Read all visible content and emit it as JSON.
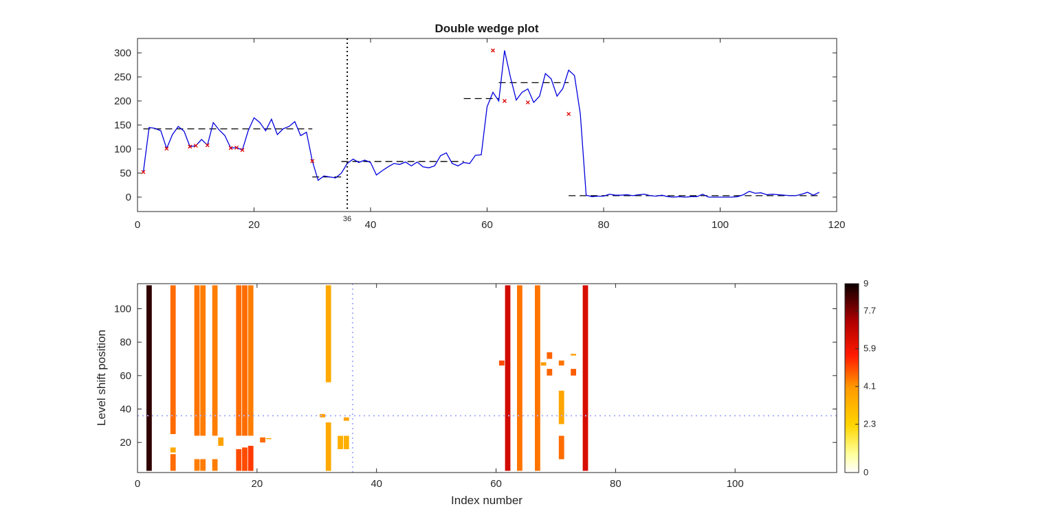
{
  "chart_data": [
    {
      "type": "line",
      "title": "Double wedge plot",
      "xlabel": "",
      "ylabel": "",
      "xlim": [
        0,
        120
      ],
      "ylim": [
        -30,
        330
      ],
      "xticks": [
        "0",
        "20",
        "40",
        "60",
        "80",
        "100",
        "120"
      ],
      "yticks": [
        "0",
        "50",
        "100",
        "150",
        "200",
        "250",
        "300"
      ],
      "vline": {
        "x": 36,
        "label": "36"
      },
      "colors": {
        "series": "#0000dd",
        "fit": "#000000",
        "marker": "#dd0000",
        "vline": "#000000"
      },
      "series": [
        {
          "x": [
            1,
            2,
            3,
            4,
            5,
            6,
            7,
            8,
            9,
            10,
            11,
            12,
            13,
            14,
            15,
            16,
            17,
            18,
            19,
            20,
            21,
            22,
            23,
            24,
            25,
            26,
            27,
            28,
            29,
            30,
            31,
            32,
            33,
            34,
            35,
            36,
            37,
            38,
            39,
            40,
            41,
            42,
            43,
            44,
            45,
            46,
            47,
            48,
            49,
            50,
            51,
            52,
            53,
            54,
            55,
            56,
            57,
            58,
            59,
            60,
            61,
            62,
            63,
            64,
            65,
            66,
            67,
            68,
            69,
            70,
            71,
            72,
            73,
            74,
            75,
            76,
            77,
            78,
            79,
            80,
            81,
            82,
            83,
            84,
            85,
            86,
            87,
            88,
            89,
            90,
            91,
            92,
            93,
            94,
            95,
            96,
            97,
            98,
            99,
            100,
            101,
            102,
            103,
            104,
            105,
            106,
            107,
            108,
            109,
            110,
            111,
            112,
            113,
            114,
            115,
            116,
            117
          ],
          "y": [
            52,
            145,
            143,
            138,
            101,
            130,
            147,
            137,
            105,
            107,
            120,
            108,
            155,
            140,
            128,
            102,
            103,
            98,
            138,
            165,
            155,
            138,
            162,
            130,
            142,
            147,
            157,
            128,
            135,
            75,
            35,
            44,
            42,
            40,
            50,
            70,
            79,
            72,
            77,
            72,
            46,
            55,
            63,
            70,
            68,
            73,
            65,
            73,
            63,
            61,
            65,
            86,
            92,
            70,
            65,
            72,
            70,
            87,
            88,
            188,
            218,
            200,
            305,
            250,
            202,
            218,
            225,
            197,
            210,
            257,
            246,
            210,
            226,
            264,
            253,
            173,
            4,
            1,
            2,
            2,
            6,
            4,
            4,
            5,
            3,
            5,
            6,
            3,
            2,
            4,
            1,
            0,
            1,
            0,
            1,
            1,
            6,
            0,
            0,
            0,
            0,
            0,
            1,
            5,
            12,
            8,
            9,
            5,
            6,
            5,
            4,
            3,
            3,
            6,
            10,
            4,
            10
          ]
        }
      ],
      "fit_segments": [
        {
          "x": [
            1,
            30
          ],
          "y": [
            142,
            142
          ]
        },
        {
          "x": [
            30,
            35
          ],
          "y": [
            42,
            42
          ]
        },
        {
          "x": [
            35,
            56
          ],
          "y": [
            74,
            74
          ]
        },
        {
          "x": [
            56,
            62
          ],
          "y": [
            205,
            205
          ]
        },
        {
          "x": [
            62,
            74
          ],
          "y": [
            238,
            238
          ]
        },
        {
          "x": [
            74,
            117
          ],
          "y": [
            3,
            3
          ]
        }
      ],
      "marked_points": [
        {
          "x": 1,
          "y": 52
        },
        {
          "x": 5,
          "y": 101
        },
        {
          "x": 9,
          "y": 105
        },
        {
          "x": 10,
          "y": 107
        },
        {
          "x": 12,
          "y": 108
        },
        {
          "x": 16,
          "y": 102
        },
        {
          "x": 17,
          "y": 103
        },
        {
          "x": 18,
          "y": 98
        },
        {
          "x": 30,
          "y": 75
        },
        {
          "x": 61,
          "y": 305
        },
        {
          "x": 63,
          "y": 200
        },
        {
          "x": 67,
          "y": 197
        },
        {
          "x": 74,
          "y": 173
        }
      ]
    },
    {
      "type": "heatmap",
      "title": "",
      "xlabel": "Index number",
      "ylabel": "Level shift position",
      "xlim": [
        0,
        117
      ],
      "ylim": [
        2,
        115
      ],
      "xticks": [
        "0",
        "20",
        "40",
        "60",
        "80",
        "100"
      ],
      "yticks": [
        "20",
        "40",
        "60",
        "80",
        "100"
      ],
      "guides": {
        "x": 36,
        "y": 36
      },
      "colorbar": {
        "range": [
          0,
          9
        ],
        "ticks": [
          "0",
          "2.3",
          "4.1",
          "5.9",
          "7.7",
          "9"
        ],
        "colormap": "hot"
      },
      "bars": [
        {
          "x": 1,
          "y0": 3,
          "y1": 114,
          "value": 8.6
        },
        {
          "x": 5,
          "y0": 25,
          "y1": 114,
          "value": 4.6
        },
        {
          "x": 5,
          "y0": 3,
          "y1": 13,
          "value": 4.6
        },
        {
          "x": 5,
          "y0": 14,
          "y1": 17,
          "value": 3.6
        },
        {
          "x": 9,
          "y0": 24,
          "y1": 114,
          "value": 4.5
        },
        {
          "x": 10,
          "y0": 24,
          "y1": 114,
          "value": 4.4
        },
        {
          "x": 9,
          "y0": 3,
          "y1": 10,
          "value": 4.4
        },
        {
          "x": 10,
          "y0": 3,
          "y1": 10,
          "value": 4.4
        },
        {
          "x": 12,
          "y0": 24,
          "y1": 114,
          "value": 4.4
        },
        {
          "x": 12,
          "y0": 3,
          "y1": 10,
          "value": 4.4
        },
        {
          "x": 13,
          "y0": 18,
          "y1": 23,
          "value": 3.8
        },
        {
          "x": 16,
          "y0": 24,
          "y1": 114,
          "value": 4.6
        },
        {
          "x": 16,
          "y0": 3,
          "y1": 16,
          "value": 5.0
        },
        {
          "x": 17,
          "y0": 24,
          "y1": 114,
          "value": 4.6
        },
        {
          "x": 17,
          "y0": 3,
          "y1": 17,
          "value": 5.0
        },
        {
          "x": 18,
          "y0": 24,
          "y1": 114,
          "value": 4.4
        },
        {
          "x": 18,
          "y0": 3,
          "y1": 18,
          "value": 5.2
        },
        {
          "x": 20,
          "y0": 20,
          "y1": 23,
          "value": 4.6
        },
        {
          "x": 21,
          "y0": 22,
          "y1": 22.6,
          "value": 3.8
        },
        {
          "x": 31,
          "y0": 56,
          "y1": 114,
          "value": 3.6
        },
        {
          "x": 31,
          "y0": 3,
          "y1": 32,
          "value": 3.6
        },
        {
          "x": 30,
          "y0": 35,
          "y1": 37,
          "value": 3.9
        },
        {
          "x": 33,
          "y0": 16,
          "y1": 24,
          "value": 3.4
        },
        {
          "x": 34,
          "y0": 16,
          "y1": 24,
          "value": 3.4
        },
        {
          "x": 34,
          "y0": 33,
          "y1": 35,
          "value": 3.8
        },
        {
          "x": 61,
          "y0": 3,
          "y1": 114,
          "value": 6.5
        },
        {
          "x": 63,
          "y0": 3,
          "y1": 114,
          "value": 4.5
        },
        {
          "x": 66,
          "y0": 3,
          "y1": 114,
          "value": 4.5
        },
        {
          "x": 70,
          "y0": 10,
          "y1": 24,
          "value": 4.6
        },
        {
          "x": 70,
          "y0": 31,
          "y1": 51,
          "value": 3.7
        },
        {
          "x": 74,
          "y0": 3,
          "y1": 114,
          "value": 6.4
        },
        {
          "x": 60,
          "y0": 66,
          "y1": 69,
          "value": 5.0
        },
        {
          "x": 68,
          "y0": 70,
          "y1": 74,
          "value": 4.7
        },
        {
          "x": 68,
          "y0": 60,
          "y1": 64,
          "value": 4.7
        },
        {
          "x": 72,
          "y0": 60,
          "y1": 64,
          "value": 4.8
        },
        {
          "x": 70,
          "y0": 66,
          "y1": 69,
          "value": 4.5
        },
        {
          "x": 67,
          "y0": 66,
          "y1": 68,
          "value": 4.0
        },
        {
          "x": 72,
          "y0": 72,
          "y1": 73,
          "value": 4.0
        }
      ]
    }
  ]
}
